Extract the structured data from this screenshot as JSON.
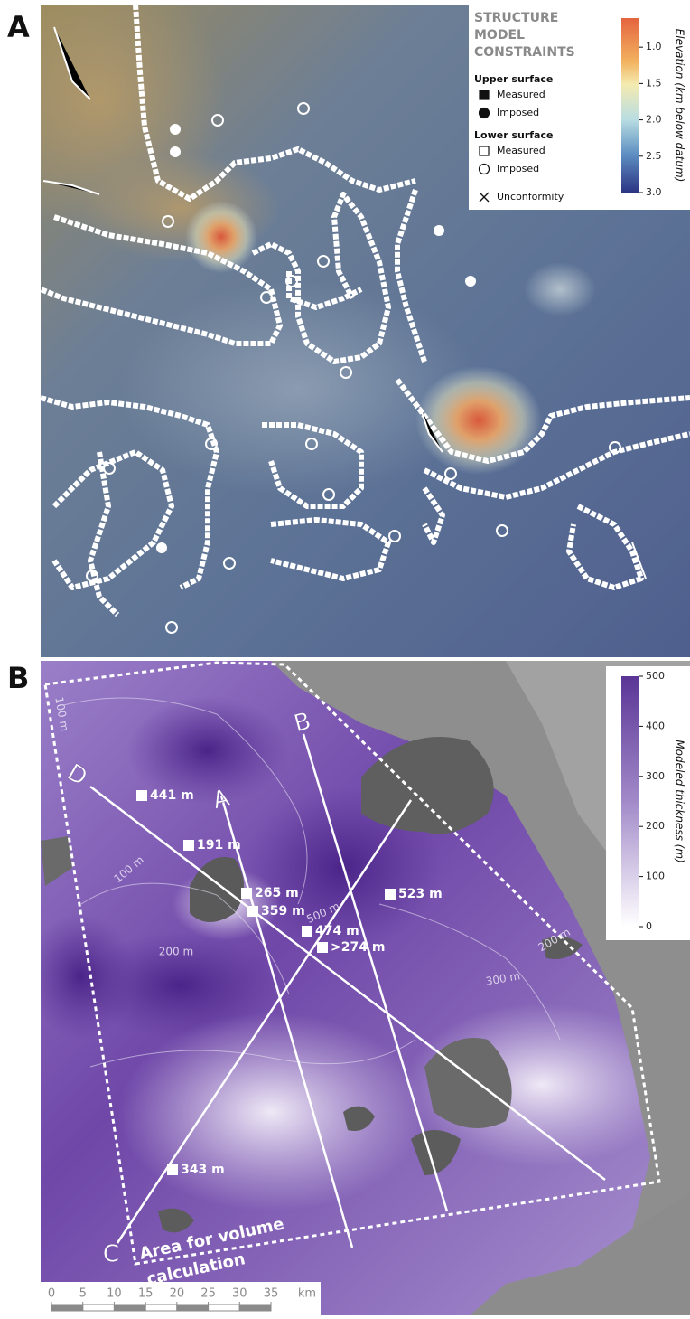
{
  "panel_a": {
    "letter": "A",
    "legend": {
      "title_lines": [
        "STRUCTURE",
        "MODEL",
        "CONSTRAINTS"
      ],
      "groups": [
        {
          "heading": "Upper surface",
          "items": [
            "Measured",
            "Imposed"
          ]
        },
        {
          "heading": "Lower surface",
          "items": [
            "Measured",
            "Imposed"
          ]
        }
      ],
      "unconformity": "Unconformity"
    },
    "colorbar": {
      "label": "Elevation (km below datum)",
      "lim": [
        0.6,
        3.0
      ],
      "ticks": [
        {
          "value": 1,
          "label": "1.0"
        },
        1.5,
        {
          "value": 2,
          "label": "2.0"
        },
        2.5,
        {
          "value": 3,
          "label": "3.0"
        }
      ]
    }
  },
  "panel_b": {
    "letter": "B",
    "colorbar": {
      "label": "Modeled thickness (m)",
      "lim": [
        0,
        500
      ],
      "ticks": [
        0,
        100,
        200,
        300,
        400,
        500
      ]
    },
    "section_lines": [
      "A",
      "B",
      "C",
      "D"
    ],
    "points": [
      "441 m",
      "191 m",
      "265 m",
      "359 m",
      "474 m",
      ">274 m",
      "523 m",
      "343 m"
    ],
    "contour_labels": [
      "100 m",
      "100 m",
      "200 m",
      "500 m",
      "300 m",
      "200 m"
    ],
    "area_label_lines": [
      "Area for volume",
      "calculation"
    ],
    "scale_bar": {
      "ticks": [
        0,
        5,
        10,
        15,
        20,
        25,
        30,
        35
      ],
      "unit": "km"
    }
  }
}
